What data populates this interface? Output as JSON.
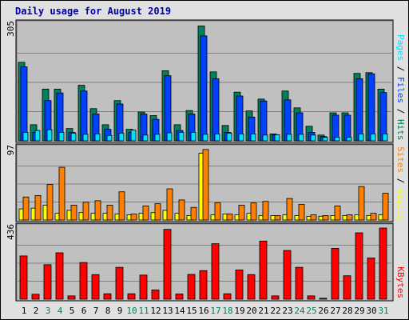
{
  "chart_data": {
    "type": "bar",
    "title": "Daily usage for August 2019",
    "categories": [
      "1",
      "2",
      "3",
      "4",
      "5",
      "6",
      "7",
      "8",
      "9",
      "10",
      "11",
      "12",
      "13",
      "14",
      "15",
      "16",
      "17",
      "18",
      "19",
      "20",
      "21",
      "22",
      "23",
      "24",
      "25",
      "26",
      "27",
      "28",
      "29",
      "30",
      "31"
    ],
    "weekend_days": [
      "3",
      "4",
      "10",
      "11",
      "17",
      "18",
      "24",
      "25",
      "31"
    ],
    "colors": {
      "hits": "#00805c",
      "files": "#0040ff",
      "pages": "#00e0ff",
      "visits": "#ffff00",
      "sites": "#ff8000",
      "kbytes": "#ff0000",
      "weekday_label": "#000000",
      "weekend_label": "#00805c",
      "panel_bg": "#c0c0c0",
      "title": "#0000a8"
    },
    "panels": [
      {
        "id": "hits-panel",
        "ymax": 305,
        "ytick_label": "305",
        "label_parts": [
          {
            "text": "Pages",
            "color": "#00e0ff"
          },
          {
            "text": " / ",
            "color": "#000000"
          },
          {
            "text": "Files",
            "color": "#0040ff"
          },
          {
            "text": " / ",
            "color": "#000000"
          },
          {
            "text": "Hits",
            "color": "#00805c"
          }
        ],
        "series": [
          {
            "name": "Hits",
            "color": "#00805c",
            "values": [
              205,
              42,
              135,
              135,
              32,
              145,
              84,
              42,
              105,
              30,
              75,
              66,
              183,
              42,
              79,
              300,
              180,
              40,
              127,
              78,
              109,
              18,
              130,
              86,
              38,
              15,
              73,
              73,
              176,
              178,
              135
            ]
          },
          {
            "name": "Files",
            "color": "#0040ff",
            "values": [
              193,
              22,
              105,
              125,
              22,
              130,
              70,
              30,
              96,
              22,
              70,
              56,
              170,
              27,
              70,
              274,
              162,
              22,
              117,
              62,
              104,
              16,
              107,
              73,
              22,
              11,
              67,
              67,
              162,
              175,
              126
            ]
          },
          {
            "name": "Pages",
            "color": "#00e0ff",
            "values": [
              22,
              27,
              29,
              22,
              20,
              17,
              18,
              14,
              20,
              28,
              15,
              17,
              21,
              22,
              22,
              17,
              18,
              20,
              18,
              18,
              15,
              16,
              17,
              17,
              15,
              9,
              9,
              9,
              18,
              18,
              18
            ]
          }
        ]
      },
      {
        "id": "visits-panel",
        "ymax": 97,
        "ytick_label": "97",
        "label_parts": [
          {
            "text": "Sites",
            "color": "#ff8000"
          },
          {
            "text": " / ",
            "color": "#000000"
          },
          {
            "text": "Visits",
            "color": "#ffff00"
          }
        ],
        "series": [
          {
            "name": "Visits",
            "color": "#ffff00",
            "values": [
              15,
              16,
              20,
              9,
              13,
              10,
              9,
              9,
              8,
              7,
              9,
              10,
              13,
              9,
              6,
              90,
              7,
              8,
              7,
              9,
              6,
              6,
              7,
              6,
              5,
              5,
              6,
              6,
              7,
              6,
              7
            ]
          },
          {
            "name": "Sites",
            "color": "#ff8000",
            "values": [
              31,
              33,
              48,
              71,
              20,
              24,
              26,
              20,
              38,
              8,
              19,
              22,
              42,
              27,
              17,
              95,
              23,
              8,
              20,
              23,
              25,
              6,
              29,
              21,
              7,
              6,
              19,
              7,
              45,
              9,
              36
            ]
          }
        ]
      },
      {
        "id": "kbytes-panel",
        "ymax": 436,
        "ytick_label": "436",
        "label_parts": [
          {
            "text": "KBytes",
            "color": "#ff0000"
          }
        ],
        "series": [
          {
            "name": "KBytes",
            "color": "#ff0000",
            "values": [
              262,
              30,
              209,
              281,
              20,
              222,
              149,
              33,
              193,
              33,
              146,
              56,
              423,
              32,
              150,
              173,
              336,
              33,
              177,
              149,
              352,
              20,
              295,
              193,
              20,
              6,
              308,
              142,
              402,
              250,
              431
            ]
          }
        ]
      }
    ]
  }
}
